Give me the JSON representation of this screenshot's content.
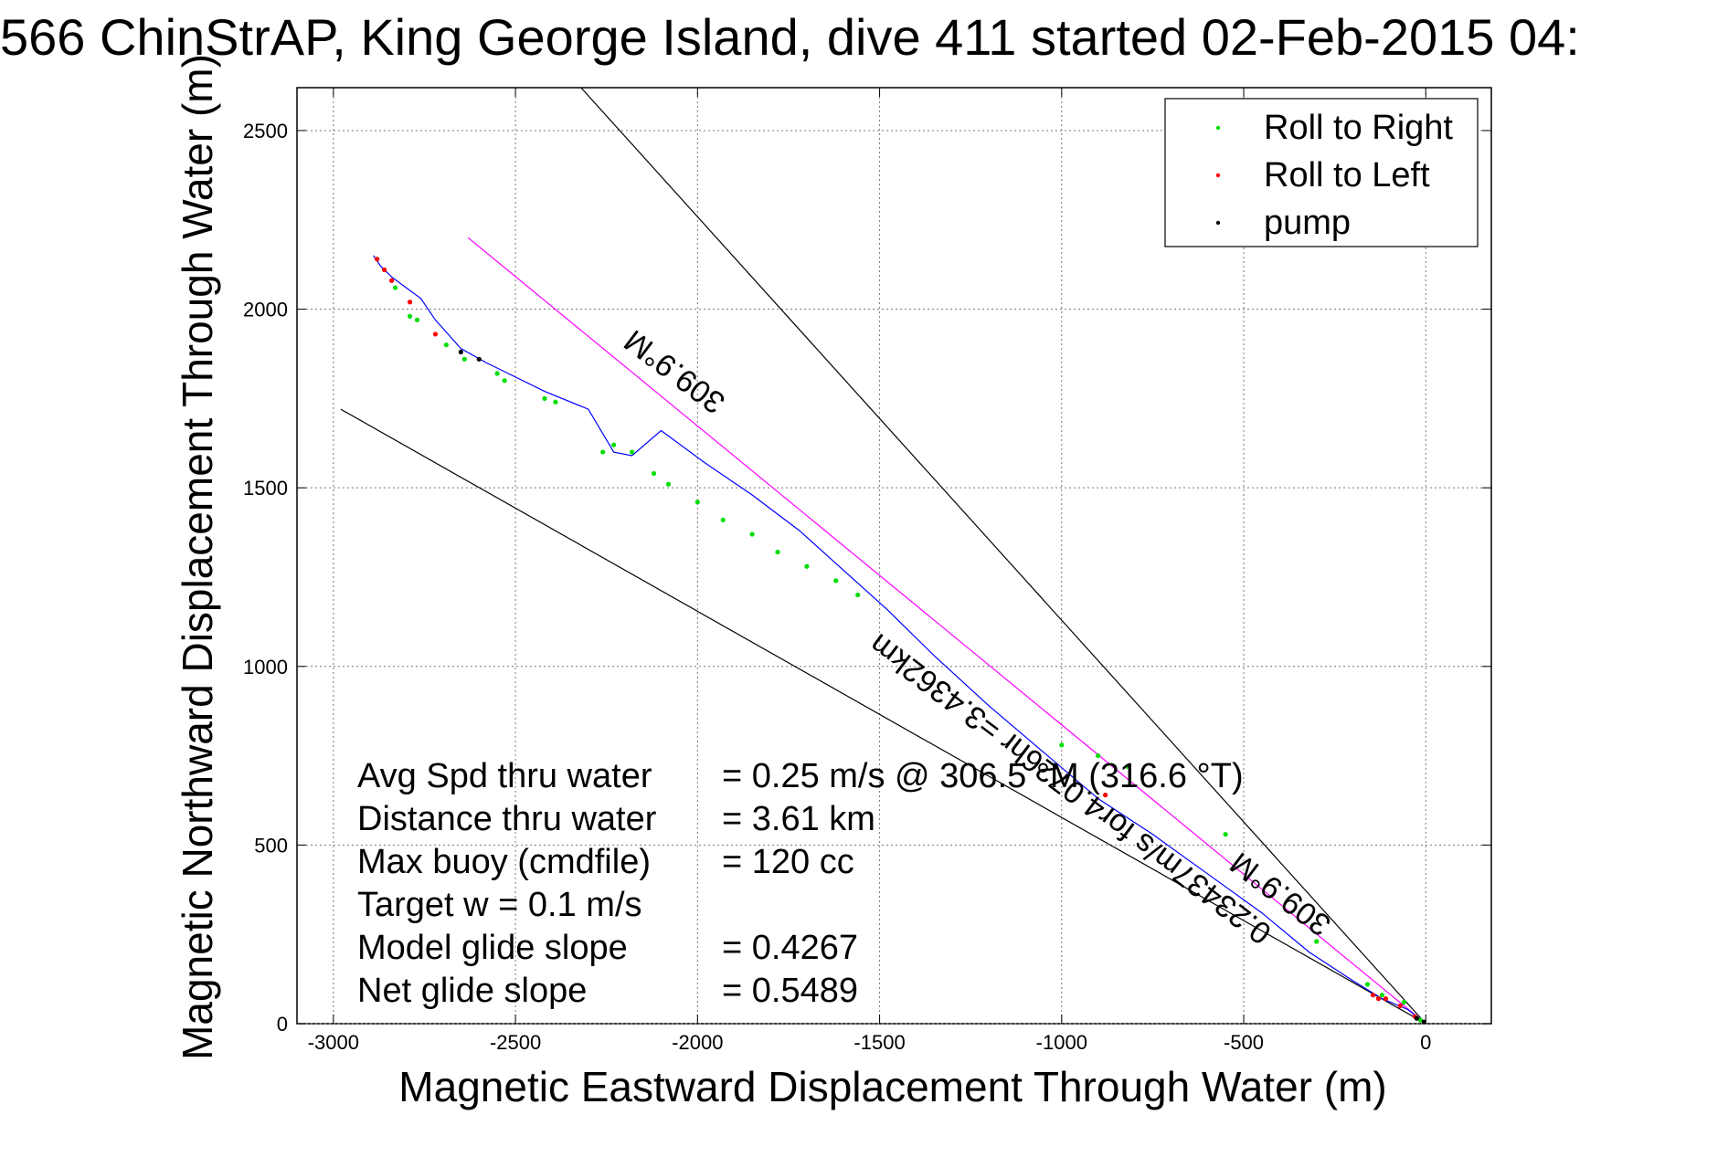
{
  "chart_data": {
    "type": "scatter",
    "title": "566 ChinStrAP, King George Island, dive 411 started 02-Feb-2015 04:",
    "xlabel": "Magnetic Eastward Displacement Through Water (m)",
    "ylabel": "Magnetic Northward Displacement Through Water (m)",
    "xlim": [
      -3100,
      180
    ],
    "ylim": [
      0,
      2620
    ],
    "xticks": [
      -3000,
      -2500,
      -2000,
      -1500,
      -1000,
      -500,
      0
    ],
    "yticks": [
      0,
      500,
      1000,
      1500,
      2000,
      2500
    ],
    "grid": true,
    "legend_position": "top-right",
    "legend": [
      {
        "label": "Roll to Right",
        "color": "#00dd00"
      },
      {
        "label": "Roll to Left",
        "color": "#ff0000"
      },
      {
        "label": "pump",
        "color": "#000000"
      }
    ],
    "track": {
      "color": "#0000ff",
      "x": [
        0,
        -50,
        -120,
        -200,
        -320,
        -450,
        -600,
        -750,
        -900,
        -1050,
        -1200,
        -1350,
        -1480,
        -1600,
        -1720,
        -1850,
        -1980,
        -2100,
        -2180,
        -2230,
        -2300,
        -2420,
        -2500,
        -2580,
        -2650,
        -2720,
        -2760,
        -2800,
        -2840,
        -2870,
        -2890
      ],
      "y": [
        0,
        40,
        70,
        120,
        200,
        310,
        420,
        530,
        630,
        760,
        890,
        1030,
        1160,
        1270,
        1380,
        1480,
        1570,
        1660,
        1590,
        1600,
        1720,
        1770,
        1810,
        1850,
        1890,
        1970,
        2030,
        2060,
        2090,
        2120,
        2150
      ]
    },
    "series": [
      {
        "name": "Roll to Right",
        "color": "#00dd00",
        "x": [
          -15,
          -60,
          -120,
          -160,
          -300,
          -550,
          -820,
          -900,
          -1000,
          -1560,
          -1620,
          -1700,
          -1780,
          -1850,
          -1930,
          -2000,
          -2080,
          -2120,
          -2180,
          -2230,
          -2260,
          -2390,
          -2420,
          -2530,
          -2550,
          -2640,
          -2690,
          -2770,
          -2790,
          -2830
        ],
        "y": [
          10,
          60,
          80,
          110,
          230,
          530,
          720,
          750,
          780,
          1200,
          1240,
          1280,
          1320,
          1370,
          1410,
          1460,
          1510,
          1540,
          1600,
          1620,
          1600,
          1740,
          1750,
          1800,
          1820,
          1860,
          1900,
          1970,
          1980,
          2060
        ]
      },
      {
        "name": "Roll to Left",
        "color": "#ff0000",
        "x": [
          -30,
          -70,
          -110,
          -130,
          -145,
          -880,
          -2720,
          -2790,
          -2840,
          -2860,
          -2880
        ],
        "y": [
          20,
          50,
          70,
          70,
          80,
          640,
          1930,
          2020,
          2080,
          2110,
          2140
        ],
        "markers": [
          "#ff0000",
          "#ff0000",
          "#ff0000",
          "#ff0000",
          "#ff0000",
          "#ff0000",
          "#ff0000",
          "#ff0000",
          "#ff0000",
          "#ff0000",
          "#ff0000"
        ]
      },
      {
        "name": "pump",
        "color": "#000000",
        "x": [
          -5,
          -25,
          -2600,
          -2650
        ],
        "y": [
          5,
          15,
          1860,
          1880
        ]
      }
    ],
    "reference_lines": [
      {
        "x": [
          -2320,
          0
        ],
        "y": [
          2620,
          0
        ],
        "color": "#000000"
      },
      {
        "x": [
          -2980,
          0
        ],
        "y": [
          1720,
          0
        ],
        "color": "#000000"
      },
      {
        "x": [
          -2630,
          0
        ],
        "y": [
          2200,
          0
        ],
        "color": "#ff00ff"
      }
    ],
    "annotations": [
      {
        "text": "309.9°M"
      },
      {
        "text": "0.23437m/s for4.0726hr =3.4362km"
      },
      {
        "text": "309.9°M"
      }
    ],
    "stats": [
      {
        "label": "Avg Spd thru water",
        "value": "=  0.25 m/s @ 306.5 °M (316.6 °T)"
      },
      {
        "label": "Distance thru water",
        "value": "=  3.61 km"
      },
      {
        "label": "Max buoy (cmdfile)",
        "value": "= 120 cc"
      },
      {
        "label": "Target w    = 0.1 m/s",
        "value": ""
      },
      {
        "label": "Model glide slope",
        "value": "= 0.4267"
      },
      {
        "label": "Net glide slope",
        "value": "= 0.5489"
      }
    ]
  }
}
